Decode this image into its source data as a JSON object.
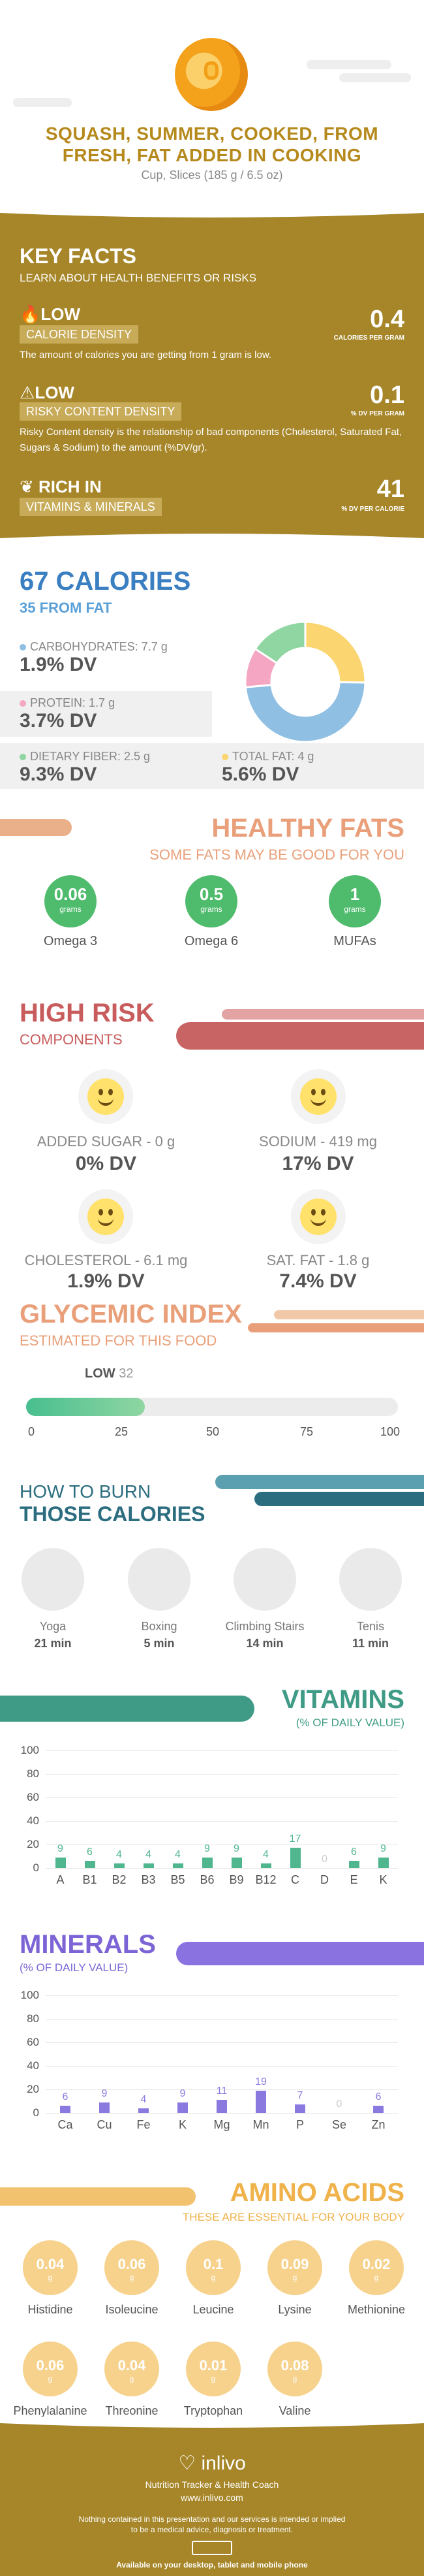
{
  "header": {
    "title_line1": "SQUASH, SUMMER, COOKED, FROM",
    "title_line2": "FRESH, FAT ADDED IN COOKING",
    "serving": "Cup, Slices (185 g / 6.5 oz)"
  },
  "key_facts": {
    "title": "KEY FACTS",
    "subtitle": "LEARN ABOUT HEALTH BENEFITS OR RISKS",
    "calorie_density": {
      "level": "LOW",
      "label": "CALORIE DENSITY",
      "value": "0.4",
      "unit": "CALORIES PER GRAM",
      "desc": "The amount of calories you are getting from 1 gram is low."
    },
    "risky_content": {
      "level": "LOW",
      "label": "RISKY CONTENT DENSITY",
      "value": "0.1",
      "unit": "% DV PER GRAM",
      "desc": "Risky Content density is the relationship of bad components (Cholesterol, Saturated Fat, Sugars & Sodium) to the amount (%DV/gr)."
    },
    "vitamins": {
      "level": "RICH  IN",
      "label": "VITAMINS & MINERALS",
      "value": "41",
      "unit": "% DV PER CALORIE"
    }
  },
  "calories": {
    "title": "67 CALORIES",
    "subtitle": "35 FROM FAT",
    "carbs_label": "CARBOHYDRATES: 7.7 g",
    "carbs_dv": "1.9% DV",
    "protein_label": "PROTEIN: 1.7 g",
    "protein_dv": "3.7% DV",
    "fiber_label": "DIETARY FIBER: 2.5 g",
    "fiber_dv": "9.3% DV",
    "fat_label": "TOTAL FAT: 4 g",
    "fat_dv": "5.6% DV",
    "colors": {
      "carbs": "#8fbfe3",
      "protein": "#f4a6c3",
      "fiber": "#8fd6a2",
      "fat": "#fbd56f"
    }
  },
  "healthy_fats": {
    "title": "HEALTHY FATS",
    "subtitle": "SOME FATS MAY BE GOOD FOR YOU",
    "omega3_value": "0.06",
    "omega3_unit": "grams",
    "omega3_name": "Omega 3",
    "omega6_value": "0.5",
    "omega6_unit": "grams",
    "omega6_name": "Omega 6",
    "mufa_value": "1",
    "mufa_unit": "grams",
    "mufa_name": "MUFAs"
  },
  "high_risk": {
    "title": "HIGH RISK",
    "subtitle": "COMPONENTS",
    "sugar_label": "ADDED SUGAR - 0 g",
    "sugar_dv": "0% DV",
    "sodium_label": "SODIUM - 419 mg",
    "sodium_dv": "17% DV",
    "chol_label": "CHOLESTEROL - 6.1 mg",
    "chol_dv": "1.9% DV",
    "satfat_label": "SAT. FAT - 1.8 g",
    "satfat_dv": "7.4% DV"
  },
  "glycemic": {
    "title": "GLYCEMIC INDEX",
    "subtitle": "ESTIMATED FOR THIS FOOD",
    "level": "LOW",
    "value_text": "32",
    "value": 32,
    "ticks": [
      "0",
      "25",
      "50",
      "75",
      "100"
    ]
  },
  "burn": {
    "title1": "HOW TO BURN",
    "title2": "THOSE CALORIES",
    "yoga": "Yoga",
    "yoga_min": "21 min",
    "boxing": "Boxing",
    "boxing_min": "5 min",
    "climbing": "Climbing Stairs",
    "climbing_min": "14 min",
    "tenis": "Tenis",
    "tenis_min": "11 min"
  },
  "vitamins": {
    "title": "VITAMINS",
    "subtitle": "(% OF DAILY VALUE)",
    "axis": [
      "100",
      "80",
      "60",
      "40",
      "20",
      "0"
    ]
  },
  "minerals": {
    "title": "MINERALS",
    "subtitle": "(% OF DAILY VALUE)",
    "axis": [
      "100",
      "80",
      "60",
      "40",
      "20",
      "0"
    ]
  },
  "amino": {
    "title": "AMINO ACIDS",
    "subtitle": "THESE ARE ESSENTIAL FOR YOUR BODY",
    "unit": "g",
    "items": [
      {
        "name": "Histidine",
        "value": "0.04"
      },
      {
        "name": "Isoleucine",
        "value": "0.06"
      },
      {
        "name": "Leucine",
        "value": "0.1"
      },
      {
        "name": "Lysine",
        "value": "0.09"
      },
      {
        "name": "Methionine",
        "value": "0.02"
      },
      {
        "name": "Phenylalanine",
        "value": "0.06"
      },
      {
        "name": "Threonine",
        "value": "0.04"
      },
      {
        "name": "Tryptophan",
        "value": "0.01"
      },
      {
        "name": "Valine",
        "value": "0.08"
      }
    ]
  },
  "footer": {
    "brand": "inlivo",
    "tagline": "Nutrition Tracker & Health Coach",
    "url": "www.inlivo.com",
    "disclaimer1": "Nothing contained in this presentation and our services is intended or implied",
    "disclaimer2": "to be a medical advice, diagnosis or treatment.",
    "available": "Available on your desktop, tablet and mobile phone"
  },
  "chart_data": [
    {
      "type": "pie",
      "categories": [
        "Carbohydrates",
        "Protein",
        "Dietary Fiber",
        "Total Fat"
      ],
      "values": [
        7.7,
        1.7,
        2.5,
        4
      ]
    },
    {
      "type": "bar",
      "title": "VITAMINS",
      "categories": [
        "A",
        "B1",
        "B2",
        "B3",
        "B5",
        "B6",
        "B9",
        "B12",
        "C",
        "D",
        "E",
        "K"
      ],
      "values": [
        9,
        6,
        4,
        4,
        4,
        9,
        9,
        4,
        17,
        0,
        6,
        9
      ],
      "ylim": [
        0,
        100
      ]
    },
    {
      "type": "bar",
      "title": "MINERALS",
      "categories": [
        "Ca",
        "Cu",
        "Fe",
        "K",
        "Mg",
        "Mn",
        "P",
        "Se",
        "Zn"
      ],
      "values": [
        6,
        9,
        4,
        9,
        11,
        19,
        7,
        0,
        6
      ],
      "ylim": [
        0,
        100
      ]
    }
  ]
}
